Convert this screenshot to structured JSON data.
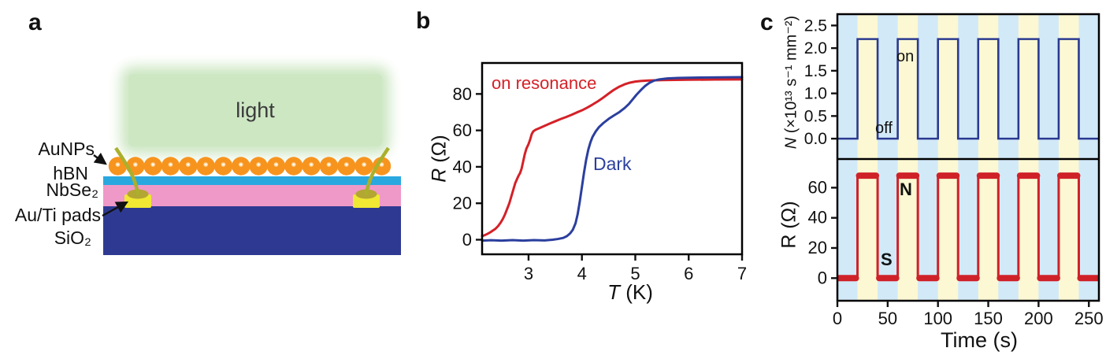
{
  "panels": {
    "a": {
      "label": "a",
      "light_label": "light",
      "labels": {
        "aunps": "AuNPs",
        "hbn": "hBN",
        "nbse2": "NbSe₂",
        "auti": "Au/Ti pads",
        "sio2": "SiO₂"
      },
      "nanoparticle_count": 16,
      "colors": {
        "light_box": "#cde7c3",
        "nanoparticle": "#f7941e",
        "nanoparticle_highlight": "#ffd9a3",
        "hbn": "#29a8e0",
        "nbse2": "#ef99c8",
        "sio2": "#2e3a92",
        "pad": "#f0e832",
        "wire": "#aab02c",
        "blob": "#b3a632"
      }
    },
    "b": {
      "label": "b"
    },
    "c": {
      "label": "c"
    }
  },
  "chart_data": [
    {
      "panel": "b",
      "type": "line",
      "xlabel_var": "T",
      "xlabel_rest": " (K)",
      "ylabel_var": "R",
      "ylabel_rest": " (Ω)",
      "xlim": [
        2.13,
        7
      ],
      "ylim": [
        -8,
        97
      ],
      "xticks": [
        3,
        4,
        5,
        6,
        7
      ],
      "yticks": [
        0,
        20,
        40,
        60,
        80
      ],
      "grid": false,
      "series": [
        {
          "name": "on resonance",
          "color": "#d42127",
          "points": [
            [
              2.13,
              2
            ],
            [
              2.18,
              2.5
            ],
            [
              2.23,
              3.2
            ],
            [
              2.28,
              4
            ],
            [
              2.33,
              5
            ],
            [
              2.38,
              6
            ],
            [
              2.43,
              7.5
            ],
            [
              2.48,
              9.5
            ],
            [
              2.52,
              11.5
            ],
            [
              2.56,
              14
            ],
            [
              2.6,
              17
            ],
            [
              2.64,
              20
            ],
            [
              2.68,
              24
            ],
            [
              2.72,
              28
            ],
            [
              2.75,
              31
            ],
            [
              2.78,
              33
            ],
            [
              2.81,
              35
            ],
            [
              2.84,
              36.5
            ],
            [
              2.87,
              39
            ],
            [
              2.9,
              43
            ],
            [
              2.93,
              47
            ],
            [
              2.96,
              50
            ],
            [
              3.0,
              52.5
            ],
            [
              3.03,
              55
            ],
            [
              3.06,
              58
            ],
            [
              3.09,
              59.5
            ],
            [
              3.13,
              60.3
            ],
            [
              3.2,
              61.2
            ],
            [
              3.3,
              62.5
            ],
            [
              3.4,
              63.8
            ],
            [
              3.5,
              65
            ],
            [
              3.6,
              66.2
            ],
            [
              3.7,
              67.3
            ],
            [
              3.8,
              68.5
            ],
            [
              3.9,
              69.8
            ],
            [
              4.0,
              71
            ],
            [
              4.1,
              72.5
            ],
            [
              4.2,
              74.2
            ],
            [
              4.3,
              76
            ],
            [
              4.4,
              78
            ],
            [
              4.5,
              80.2
            ],
            [
              4.6,
              82.3
            ],
            [
              4.7,
              84
            ],
            [
              4.8,
              85.3
            ],
            [
              4.9,
              86.2
            ],
            [
              5.0,
              86.8
            ],
            [
              5.1,
              87.1
            ],
            [
              5.25,
              87.4
            ],
            [
              5.5,
              87.6
            ],
            [
              5.75,
              87.7
            ],
            [
              6.0,
              87.8
            ],
            [
              6.5,
              87.9
            ],
            [
              7.0,
              88
            ]
          ]
        },
        {
          "name": "Dark",
          "color": "#2b3f9e",
          "points": [
            [
              2.13,
              -0.5
            ],
            [
              2.3,
              -0.3
            ],
            [
              2.5,
              -0.5
            ],
            [
              2.7,
              -0.2
            ],
            [
              2.9,
              -0.5
            ],
            [
              3.1,
              -0.2
            ],
            [
              3.3,
              -0.4
            ],
            [
              3.45,
              0
            ],
            [
              3.55,
              0.4
            ],
            [
              3.65,
              1
            ],
            [
              3.72,
              2
            ],
            [
              3.78,
              3.5
            ],
            [
              3.83,
              5.5
            ],
            [
              3.88,
              9
            ],
            [
              3.92,
              14
            ],
            [
              3.96,
              21
            ],
            [
              4.0,
              29
            ],
            [
              4.04,
              37
            ],
            [
              4.08,
              44
            ],
            [
              4.12,
              49.5
            ],
            [
              4.16,
              53.5
            ],
            [
              4.2,
              56.5
            ],
            [
              4.26,
              59.5
            ],
            [
              4.32,
              61.8
            ],
            [
              4.4,
              64
            ],
            [
              4.5,
              66.3
            ],
            [
              4.6,
              68.2
            ],
            [
              4.7,
              70
            ],
            [
              4.8,
              72.3
            ],
            [
              4.88,
              74.5
            ],
            [
              4.95,
              77
            ],
            [
              5.02,
              79.5
            ],
            [
              5.1,
              82
            ],
            [
              5.18,
              84.3
            ],
            [
              5.26,
              86
            ],
            [
              5.35,
              87.3
            ],
            [
              5.45,
              88
            ],
            [
              5.6,
              88.5
            ],
            [
              5.8,
              88.8
            ],
            [
              6.2,
              89
            ],
            [
              7.0,
              89.2
            ]
          ]
        }
      ]
    },
    {
      "panel": "c",
      "type": "square-wave",
      "xlabel": "Time (s)",
      "xlim": [
        0,
        260
      ],
      "xticks": [
        0,
        50,
        100,
        150,
        200,
        250
      ],
      "on_periods": [
        [
          20,
          40
        ],
        [
          60,
          80
        ],
        [
          100,
          120
        ],
        [
          140,
          160
        ],
        [
          180,
          200
        ],
        [
          220,
          240
        ]
      ],
      "band_colors": {
        "off": "#d2e9f8",
        "on": "#fcf8d3"
      },
      "subplots": [
        {
          "ylabel_var": "N",
          "ylabel_rest": " (×10¹³ s⁻¹ mm⁻²)",
          "ylim": [
            -0.45,
            2.75
          ],
          "yticks": [
            "0.0",
            "0.5",
            "1.0",
            "1.5",
            "2.0",
            "2.5"
          ],
          "low": 0,
          "high": 2.2,
          "color": "#2b3a90",
          "annotations": [
            {
              "text": "on"
            },
            {
              "text": "off"
            }
          ]
        },
        {
          "ylabel": "R (Ω)",
          "ylim": [
            -15,
            79
          ],
          "yticks": [
            0,
            20,
            40,
            60
          ],
          "low": 0,
          "high": 68,
          "color": "#cf2128",
          "annotations": [
            {
              "text": "N"
            },
            {
              "text": "S"
            }
          ]
        }
      ]
    }
  ]
}
